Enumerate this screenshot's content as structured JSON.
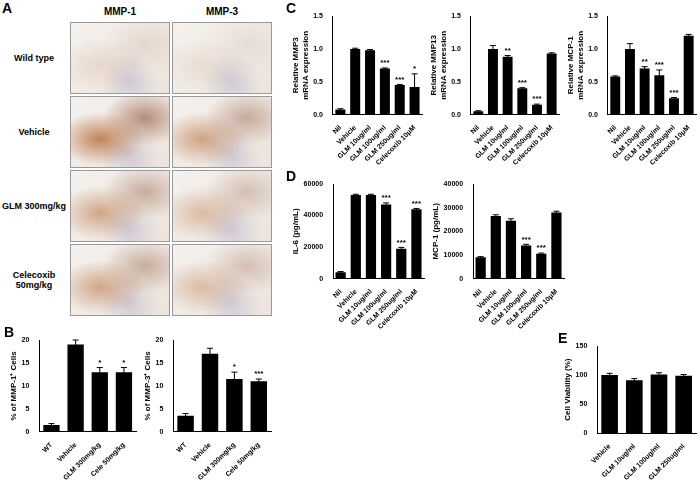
{
  "image_grid": {
    "panel": "A",
    "columns": [
      "MMP-1",
      "MMP-3"
    ],
    "rows": [
      "Wild type",
      "Vehicle",
      "GLM 300mg/kg",
      "Celecoxib 50mg/kg"
    ]
  },
  "chart_data": [
    {
      "panel": "B",
      "type": "bar",
      "y_label": "% of MMP-1⁺ Cells",
      "categories": [
        "WT",
        "Vehicle",
        "GLM 300mg/kg",
        "Cele 50mg/kg"
      ],
      "values": [
        1.5,
        19,
        13,
        13
      ],
      "errors": [
        0.3,
        1,
        1,
        1
      ],
      "stars": [
        null,
        null,
        "*",
        "*"
      ],
      "color": "#000000",
      "ylim": [
        0,
        20
      ],
      "yticks": [
        0,
        5,
        10,
        15,
        20
      ],
      "grid": false
    },
    {
      "type": "bar",
      "y_label": "% of MMP-3⁺ Cells",
      "categories": [
        "WT",
        "Vehicle",
        "GLM 300mg/kg",
        "Cele 50mg/kg"
      ],
      "values": [
        3.5,
        17,
        11.5,
        11
      ],
      "errors": [
        0.5,
        1.2,
        1.5,
        0.5
      ],
      "stars": [
        null,
        null,
        "*",
        "***"
      ],
      "color": "#000000",
      "ylim": [
        0,
        20
      ],
      "yticks": [
        0,
        5,
        10,
        15,
        20
      ],
      "grid": false
    },
    {
      "panel": "C",
      "type": "bar",
      "y_label": [
        "Relative MMP3",
        "mRNA expression"
      ],
      "categories": [
        "Nil",
        "Vehicle",
        "GLM 10ug/ml",
        "GLM 100ug/ml",
        "GLM 250ug/ml",
        "Celecoxib 10μM"
      ],
      "values": [
        0.08,
        1.0,
        0.98,
        0.7,
        0.45,
        0.42
      ],
      "errors": [
        0.01,
        0.01,
        0.01,
        0.01,
        0.01,
        0.2
      ],
      "stars": [
        null,
        null,
        null,
        "***",
        "***",
        "*"
      ],
      "color": "#000000",
      "ylim": [
        0,
        1.5
      ],
      "yticks": [
        {
          "value": 0,
          "label": "0.0"
        },
        0.5,
        {
          "value": 1,
          "label": "1.0"
        },
        1.5
      ],
      "grid": false
    },
    {
      "type": "bar",
      "y_label": [
        "Relative MMP13",
        "mRNA expression"
      ],
      "categories": [
        "Nil",
        "Vehicle",
        "GLM 10ug/ml",
        "GLM 100ug/ml",
        "GLM 250ug/ml",
        "Celecoxib 10μM"
      ],
      "values": [
        0.05,
        1.0,
        0.88,
        0.4,
        0.15,
        0.93
      ],
      "errors": [
        0.01,
        0.05,
        0.02,
        0.01,
        0.01,
        0.01
      ],
      "stars": [
        null,
        null,
        "**",
        "***",
        "***",
        null
      ],
      "color": "#000000",
      "ylim": [
        0,
        1.5
      ],
      "yticks": [
        {
          "value": 0,
          "label": "0.0"
        },
        0.5,
        {
          "value": 1,
          "label": "1.0"
        },
        1.5
      ],
      "grid": false
    },
    {
      "type": "bar",
      "y_label": [
        "Relative MCP-1",
        "mRNA expression"
      ],
      "categories": [
        "Nil",
        "Vehicle",
        "GLM 10ug/ml",
        "GLM 100ug/ml",
        "GLM 250ug/ml",
        "Celecoxib 10μM"
      ],
      "values": [
        0.58,
        1.0,
        0.7,
        0.6,
        0.25,
        1.2
      ],
      "errors": [
        0.01,
        0.08,
        0.03,
        0.08,
        0.01,
        0.02
      ],
      "stars": [
        null,
        null,
        "**",
        "***",
        "***",
        null
      ],
      "color": "#000000",
      "ylim": [
        0,
        1.5
      ],
      "yticks": [
        {
          "value": 0,
          "label": "0.0"
        },
        0.5,
        {
          "value": 1,
          "label": "1.0"
        },
        1.5
      ],
      "grid": false
    },
    {
      "panel": "D",
      "type": "bar",
      "y_label": "IL-6 (pg/mL)",
      "categories": [
        "Nil",
        "Vehicle",
        "GLM 10ug/ml",
        "GLM 100ug/ml",
        "GLM 250ug/ml",
        "Celecoxib 10μM"
      ],
      "values": [
        4000,
        53000,
        53000,
        47000,
        19000,
        44000
      ],
      "errors": [
        500,
        500,
        500,
        1000,
        800,
        500
      ],
      "stars": [
        null,
        null,
        null,
        "***",
        "***",
        "***"
      ],
      "color": "#000000",
      "ylim": [
        0,
        60000
      ],
      "yticks": [
        0,
        20000,
        40000,
        60000
      ],
      "grid": false
    },
    {
      "type": "bar",
      "y_label": "MCP-1 (pg/mL)",
      "categories": [
        "Nil",
        "Vehicle",
        "GLM 10ug/ml",
        "GLM 100ug/ml",
        "GLM 250ug/ml",
        "Celecoxib 10μM"
      ],
      "values": [
        9000,
        26500,
        24500,
        14000,
        10500,
        28000
      ],
      "errors": [
        300,
        500,
        800,
        500,
        300,
        500
      ],
      "stars": [
        null,
        null,
        null,
        "***",
        "***",
        null
      ],
      "color": "#000000",
      "ylim": [
        0,
        40000
      ],
      "yticks": [
        0,
        10000,
        20000,
        30000,
        40000
      ],
      "grid": false
    },
    {
      "panel": "E",
      "type": "bar",
      "y_label": "Cell Viability (%)",
      "categories": [
        "Vehicle",
        "GLM 10ug/ml",
        "GLM 100ug/ml",
        "GLM 250ug/ml"
      ],
      "values": [
        100,
        91,
        101,
        99
      ],
      "errors": [
        3,
        3,
        3,
        2
      ],
      "color": "#000000",
      "ylim": [
        0,
        150
      ],
      "yticks": [
        0,
        50,
        100,
        150
      ],
      "grid": false
    }
  ]
}
